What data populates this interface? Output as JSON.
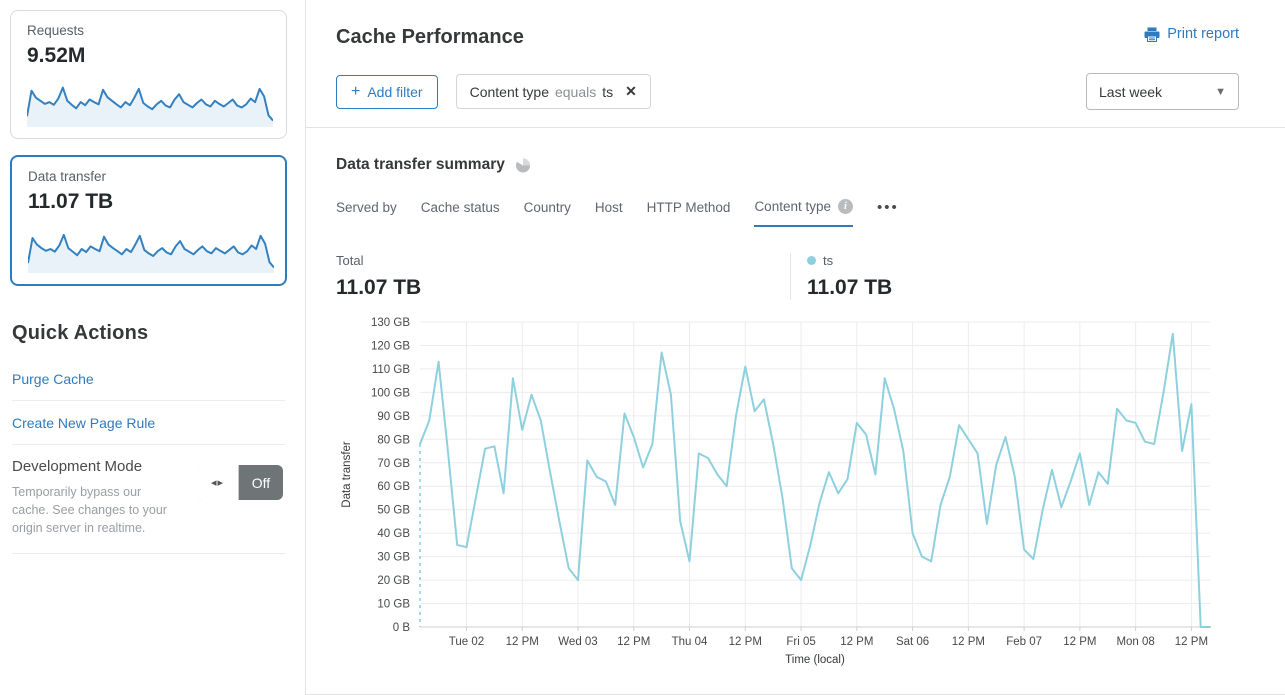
{
  "colors": {
    "accent_blue": "#2f7bbf",
    "chart_line": "#8fd0de",
    "sparkline_stroke": "#3381c1",
    "sparkline_fill": "#eaf2f9",
    "grid": "#ececec",
    "axis": "#cfcfcf"
  },
  "sidebar": {
    "cards": [
      {
        "label": "Requests",
        "value": "9.52M",
        "selected": false,
        "sparkline": [
          20,
          78,
          62,
          55,
          48,
          52,
          46,
          60,
          85,
          55,
          46,
          38,
          52,
          45,
          58,
          52,
          47,
          80,
          63,
          55,
          47,
          40,
          52,
          45,
          62,
          82,
          50,
          42,
          36,
          47,
          55,
          44,
          40,
          58,
          70,
          52,
          46,
          40,
          50,
          58,
          47,
          42,
          55,
          48,
          42,
          50,
          58,
          44,
          40,
          47,
          60,
          52,
          82,
          65,
          22,
          10
        ]
      },
      {
        "label": "Data transfer",
        "value": "11.07 TB",
        "selected": true,
        "sparkline": [
          18,
          75,
          60,
          52,
          46,
          50,
          44,
          58,
          82,
          52,
          44,
          36,
          50,
          43,
          56,
          50,
          45,
          78,
          60,
          52,
          45,
          38,
          50,
          43,
          60,
          80,
          48,
          40,
          34,
          45,
          52,
          42,
          38,
          56,
          68,
          50,
          44,
          38,
          48,
          56,
          45,
          40,
          52,
          46,
          40,
          48,
          56,
          42,
          38,
          45,
          58,
          50,
          80,
          62,
          20,
          8
        ]
      }
    ],
    "quick_actions": {
      "title": "Quick Actions",
      "links": [
        "Purge Cache",
        "Create New Page Rule"
      ],
      "dev_mode": {
        "title": "Development Mode",
        "description": "Temporarily bypass our cache. See changes to your origin server in realtime.",
        "toggle_state": "Off"
      }
    }
  },
  "header": {
    "title": "Cache Performance",
    "print_label": "Print report",
    "add_filter_label": "Add filter",
    "plus": "+"
  },
  "filter_chip": {
    "field": "Content type",
    "operator": "equals",
    "value": "ts",
    "close": "✕"
  },
  "time_range": {
    "selected": "Last week"
  },
  "summary": {
    "title": "Data transfer summary",
    "tabs": [
      {
        "label": "Served by",
        "active": false
      },
      {
        "label": "Cache status",
        "active": false
      },
      {
        "label": "Country",
        "active": false
      },
      {
        "label": "Host",
        "active": false
      },
      {
        "label": "HTTP Method",
        "active": false
      },
      {
        "label": "Content type",
        "active": true,
        "has_info": true
      }
    ],
    "info_glyph": "i",
    "more_label": "•••",
    "total": {
      "label": "Total",
      "value": "11.07 TB"
    },
    "series_legend": [
      {
        "label": "ts",
        "value": "11.07 TB",
        "color": "#8fd0de"
      }
    ]
  },
  "chart_data": {
    "type": "line",
    "title": "",
    "xlabel": "Time (local)",
    "ylabel": "Data transfer",
    "unit": "GB",
    "ylim": [
      0,
      130
    ],
    "y_tick_labels": [
      "0 B",
      "10 GB",
      "20 GB",
      "30 GB",
      "40 GB",
      "50 GB",
      "60 GB",
      "70 GB",
      "80 GB",
      "90 GB",
      "100 GB",
      "110 GB",
      "120 GB",
      "130 GB"
    ],
    "x_tick_labels": [
      "Tue 02",
      "12 PM",
      "Wed 03",
      "12 PM",
      "Thu 04",
      "12 PM",
      "Fri 05",
      "12 PM",
      "Sat 06",
      "12 PM",
      "Feb 07",
      "12 PM",
      "Mon 08",
      "12 PM"
    ],
    "x_tick_indices": [
      5,
      11,
      17,
      23,
      29,
      35,
      41,
      47,
      53,
      59,
      65,
      71,
      77,
      83
    ],
    "x_step_hours": 2,
    "grid": true,
    "leading_dashed_drop": true,
    "series": [
      {
        "name": "ts",
        "color": "#8fd0de",
        "values": [
          78,
          88,
          113,
          75,
          35,
          34,
          55,
          76,
          77,
          57,
          106,
          84,
          99,
          88,
          66,
          45,
          25,
          20,
          71,
          64,
          62,
          52,
          91,
          81,
          68,
          78,
          117,
          99,
          45,
          28,
          74,
          72,
          65,
          60,
          90,
          111,
          92,
          97,
          78,
          55,
          25,
          20,
          35,
          53,
          66,
          57,
          63,
          87,
          82,
          65,
          106,
          93,
          75,
          40,
          30,
          28,
          52,
          64,
          86,
          80,
          74,
          44,
          69,
          81,
          64,
          33,
          29,
          50,
          67,
          51,
          62,
          74,
          52,
          66,
          61,
          93,
          88,
          87,
          79,
          78,
          100,
          125,
          75,
          95,
          0,
          0
        ]
      }
    ]
  }
}
